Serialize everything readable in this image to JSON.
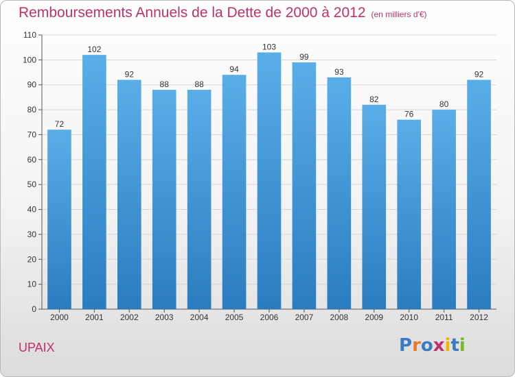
{
  "chart_data": {
    "type": "bar",
    "title": "Remboursements Annuels de la Dette de 2000 à 2012",
    "unit_note": "(en milliers d'€)",
    "categories": [
      "2000",
      "2001",
      "2002",
      "2003",
      "2004",
      "2005",
      "2006",
      "2007",
      "2008",
      "2009",
      "2010",
      "2011",
      "2012"
    ],
    "values": [
      72,
      102,
      92,
      88,
      88,
      94,
      103,
      99,
      93,
      82,
      76,
      80,
      92
    ],
    "ylim": [
      0,
      110
    ],
    "yticks": [
      0,
      10,
      20,
      30,
      40,
      50,
      60,
      70,
      80,
      90,
      100,
      110
    ],
    "grid": true,
    "bar_color_top": "#5aaee8",
    "bar_color_bottom": "#2a7cc0",
    "xlabel": "",
    "ylabel": ""
  },
  "location": "UPAIX",
  "logo": {
    "text": "Proxiti",
    "letter_colors": [
      "#3a7cc4",
      "#e87a28",
      "#3a7cc4",
      "#c0306a",
      "#f0b400",
      "#3a7cc4",
      "#7ab828"
    ]
  }
}
